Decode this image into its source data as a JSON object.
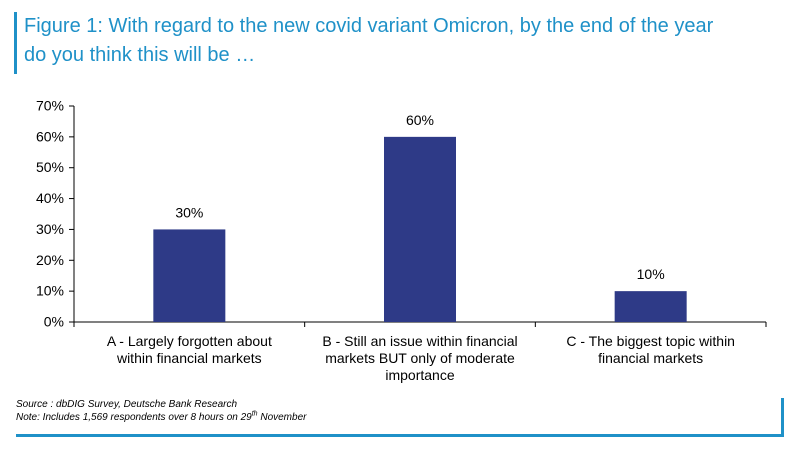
{
  "header": {
    "title": "Figure 1: With regard to the new covid variant Omicron, by the end of the year\ndo you think this will be …"
  },
  "chart_data": {
    "type": "bar",
    "categories": [
      [
        "A - Largely forgotten about",
        "within financial markets"
      ],
      [
        "B - Still an issue within financial",
        "markets BUT only of moderate",
        "importance"
      ],
      [
        "C - The biggest topic within",
        "financial markets"
      ]
    ],
    "values": [
      30,
      60,
      10
    ],
    "value_labels": [
      "30%",
      "60%",
      "10%"
    ],
    "y_ticks": [
      0,
      10,
      20,
      30,
      40,
      50,
      60,
      70
    ],
    "y_tick_labels": [
      "0%",
      "10%",
      "20%",
      "30%",
      "40%",
      "50%",
      "60%",
      "70%"
    ],
    "ylim": [
      0,
      70
    ],
    "bar_color": "#2e3a87",
    "grid": false,
    "legend": "none"
  },
  "footer": {
    "source": "Source : dbDIG Survey, Deutsche Bank Research",
    "note_prefix": "Note: Includes 1,569 respondents over 8 hours on 29",
    "note_sup": "th",
    "note_suffix": " November"
  },
  "colors": {
    "accent": "#1f91c8",
    "bar": "#2e3a87"
  }
}
